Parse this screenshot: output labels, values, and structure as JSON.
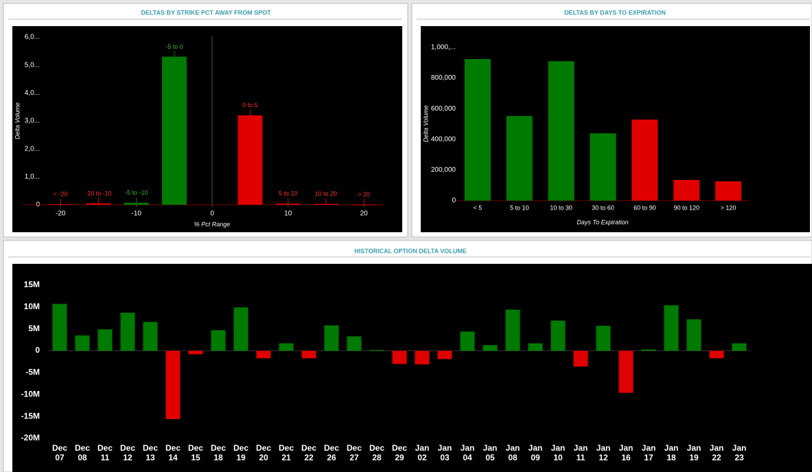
{
  "chart_data": [
    {
      "type": "bar",
      "title": "DELTAS BY STRIKE PCT AWAY FROM SPOT",
      "x_label": "% Pct Range",
      "y_label": "Delta Volume",
      "x": [
        -20,
        -15,
        -10,
        -5,
        5,
        10,
        15,
        20
      ],
      "values": [
        20,
        50,
        70,
        5300,
        3200,
        40,
        30,
        10
      ],
      "labels": [
        "< -20",
        "-20 to -10",
        "-5 to -10",
        "-5 to 0",
        "0 to 5",
        "5 to 10",
        "10 to 20",
        "> 20"
      ],
      "colors": [
        "#e00000",
        "#e00000",
        "#007a00",
        "#007a00",
        "#e00000",
        "#e00000",
        "#e00000",
        "#e00000"
      ],
      "xlim": [
        -25,
        22.7
      ],
      "xticks": [
        -20,
        -10,
        0,
        10,
        20
      ],
      "ylim": [
        0,
        6000
      ],
      "yticks": [
        0,
        {
          "value": 1000,
          "label": "1,0..."
        },
        {
          "value": 2000,
          "label": "2,0..."
        },
        {
          "value": 3000,
          "label": "3,0..."
        },
        {
          "value": 4000,
          "label": "4,0..."
        },
        {
          "value": 5000,
          "label": "5,0..."
        },
        {
          "value": 6000,
          "label": "6,0..."
        }
      ]
    },
    {
      "type": "bar",
      "title": "DELTAS BY DAYS TO EXPIRATION",
      "x_label": "Days To Expiration",
      "y_label": "Delta Volume",
      "categories": [
        "< 5",
        "5 to 10",
        "10 to 30",
        "30 to 60",
        "60 to 90",
        "90 to 120",
        "> 120"
      ],
      "values": [
        924000,
        552000,
        910000,
        439000,
        529000,
        135000,
        126000
      ],
      "colors": [
        "#007a00",
        "#007a00",
        "#007a00",
        "#007a00",
        "#e00000",
        "#e00000",
        "#e00000"
      ],
      "ylim": [
        0,
        1000000
      ],
      "yticks": [
        0,
        {
          "value": 200000,
          "label": "200,000"
        },
        {
          "value": 400000,
          "label": "400,000"
        },
        {
          "value": 600000,
          "label": "600,000"
        },
        {
          "value": 800000,
          "label": "800,000"
        },
        {
          "value": 1000000,
          "label": "1,000,..."
        }
      ]
    },
    {
      "type": "bar",
      "title": "HISTORICAL OPTION DELTA VOLUME",
      "categories": [
        "Dec 07",
        "Dec 08",
        "Dec 11",
        "Dec 12",
        "Dec 13",
        "Dec 14",
        "Dec 15",
        "Dec 18",
        "Dec 19",
        "Dec 20",
        "Dec 21",
        "Dec 22",
        "Dec 26",
        "Dec 27",
        "Dec 28",
        "Dec 29",
        "Jan 02",
        "Jan 03",
        "Jan 04",
        "Jan 05",
        "Jan 08",
        "Jan 09",
        "Jan 10",
        "Jan 11",
        "Jan 12",
        "Jan 16",
        "Jan 17",
        "Jan 18",
        "Jan 19",
        "Jan 22",
        "Jan 23"
      ],
      "values": [
        10.7,
        3.5,
        4.9,
        8.7,
        6.6,
        -15.6,
        -0.8,
        4.7,
        9.9,
        -1.7,
        1.7,
        -1.7,
        5.8,
        3.3,
        0.2,
        -3.0,
        -3.1,
        -1.9,
        4.4,
        1.3,
        9.4,
        1.7,
        6.9,
        -3.6,
        5.7,
        -9.6,
        0.3,
        10.4,
        7.2,
        -1.7,
        1.7
      ],
      "positive_color": "#007a00",
      "negative_color": "#e00000",
      "ylim": [
        -20,
        15
      ],
      "yticks": [
        {
          "value": 15,
          "label": "15M"
        },
        {
          "value": 10,
          "label": "10M"
        },
        {
          "value": 5,
          "label": "5M"
        },
        0,
        {
          "value": -5,
          "label": "-5M"
        },
        {
          "value": -10,
          "label": "-10M"
        },
        {
          "value": -15,
          "label": "-15M"
        },
        {
          "value": -20,
          "label": "-20M"
        }
      ]
    }
  ]
}
